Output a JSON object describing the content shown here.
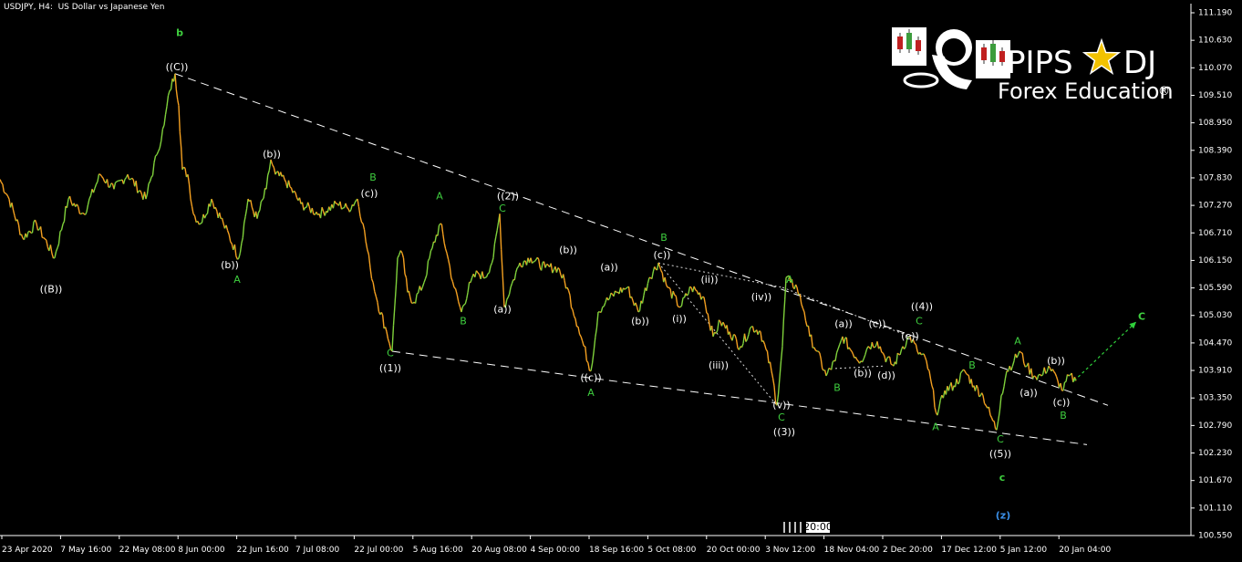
{
  "header": {
    "symbol_info": "USDJPY, H4:  US Dollar vs Japanese Yen"
  },
  "logo": {
    "brand_left": "PIPS",
    "brand_right": "DJ",
    "registered": "®",
    "tagline": "Forex Education"
  },
  "colors": {
    "background": "#000000",
    "candle_up": "#7fd13b",
    "candle_down": "#f4a020",
    "wave_green": "#3fcf3f",
    "wave_white": "#ffffff",
    "wave_blue": "#3a8ee6",
    "trendline": "#ffffff",
    "projection": "#2fd13b"
  },
  "time_marker": "20:00",
  "chart_data": {
    "type": "line",
    "title": "USDJPY, H4:  US Dollar vs Japanese Yen",
    "y_ticks": [
      "111.190",
      "110.630",
      "110.070",
      "109.510",
      "108.950",
      "108.390",
      "107.830",
      "107.270",
      "106.710",
      "106.150",
      "105.590",
      "105.030",
      "104.470",
      "103.910",
      "103.350",
      "102.790",
      "102.230",
      "101.670",
      "101.110",
      "100.550"
    ],
    "x_ticks": [
      "23 Apr 2020",
      "7 May 16:00",
      "22 May 08:00",
      "8 Jun 00:00",
      "22 Jun 16:00",
      "7 Jul 08:00",
      "22 Jul 00:00",
      "5 Aug 16:00",
      "20 Aug 08:00",
      "4 Sep 00:00",
      "18 Sep 16:00",
      "5 Oct 08:00",
      "20 Oct 00:00",
      "3 Nov 12:00",
      "18 Nov 04:00",
      "2 Dec 20:00",
      "17 Dec 12:00",
      "5 Jan 12:00",
      "20 Jan 04:00"
    ],
    "ylim": [
      100.55,
      111.19
    ],
    "grid": false,
    "series": [
      {
        "values": [
          [
            0,
            107.8
          ],
          [
            10,
            107.4
          ],
          [
            25,
            106.6
          ],
          [
            40,
            106.9
          ],
          [
            60,
            106.2
          ],
          [
            75,
            107.4
          ],
          [
            92,
            107.1
          ],
          [
            110,
            107.9
          ],
          [
            125,
            107.6
          ],
          [
            140,
            107.9
          ],
          [
            160,
            107.4
          ],
          [
            172,
            108.3
          ],
          [
            180,
            108.9
          ],
          [
            186,
            109.6
          ],
          [
            192,
            109.95
          ],
          [
            196,
            109.3
          ],
          [
            200,
            108.0
          ],
          [
            206,
            107.9
          ],
          [
            212,
            107.1
          ],
          [
            220,
            106.9
          ],
          [
            232,
            107.4
          ],
          [
            245,
            106.9
          ],
          [
            262,
            106.2
          ],
          [
            272,
            107.4
          ],
          [
            282,
            107.0
          ],
          [
            292,
            107.6
          ],
          [
            297,
            108.2
          ],
          [
            302,
            107.9
          ],
          [
            312,
            107.8
          ],
          [
            330,
            107.3
          ],
          [
            350,
            107.1
          ],
          [
            370,
            107.3
          ],
          [
            382,
            107.2
          ],
          [
            392,
            107.4
          ],
          [
            398,
            106.9
          ],
          [
            406,
            106.0
          ],
          [
            414,
            105.3
          ],
          [
            424,
            104.7
          ],
          [
            430,
            104.3
          ],
          [
            436,
            106.2
          ],
          [
            441,
            106.3
          ],
          [
            447,
            105.5
          ],
          [
            454,
            105.3
          ],
          [
            465,
            105.7
          ],
          [
            474,
            106.4
          ],
          [
            483,
            106.9
          ],
          [
            490,
            106.3
          ],
          [
            498,
            105.6
          ],
          [
            506,
            105.1
          ],
          [
            516,
            105.7
          ],
          [
            524,
            105.9
          ],
          [
            532,
            105.8
          ],
          [
            541,
            106.2
          ],
          [
            548,
            107.1
          ],
          [
            553,
            105.2
          ],
          [
            560,
            105.6
          ],
          [
            570,
            106.1
          ],
          [
            582,
            106.2
          ],
          [
            598,
            106.0
          ],
          [
            612,
            106.0
          ],
          [
            622,
            105.6
          ],
          [
            634,
            104.8
          ],
          [
            648,
            103.9
          ],
          [
            656,
            105.1
          ],
          [
            664,
            105.3
          ],
          [
            676,
            105.5
          ],
          [
            688,
            105.6
          ],
          [
            700,
            105.1
          ],
          [
            712,
            105.8
          ],
          [
            722,
            106.1
          ],
          [
            732,
            105.6
          ],
          [
            746,
            105.2
          ],
          [
            758,
            105.6
          ],
          [
            772,
            105.4
          ],
          [
            782,
            104.6
          ],
          [
            790,
            104.9
          ],
          [
            800,
            104.7
          ],
          [
            812,
            104.4
          ],
          [
            824,
            104.8
          ],
          [
            834,
            104.7
          ],
          [
            846,
            103.9
          ],
          [
            852,
            103.2
          ],
          [
            858,
            104.4
          ],
          [
            862,
            105.8
          ],
          [
            867,
            105.7
          ],
          [
            874,
            105.6
          ],
          [
            882,
            105.1
          ],
          [
            888,
            104.6
          ],
          [
            896,
            104.3
          ],
          [
            906,
            103.8
          ],
          [
            916,
            104.1
          ],
          [
            924,
            104.6
          ],
          [
            934,
            104.3
          ],
          [
            944,
            104.1
          ],
          [
            952,
            104.4
          ],
          [
            962,
            104.5
          ],
          [
            970,
            104.2
          ],
          [
            980,
            104.0
          ],
          [
            990,
            104.4
          ],
          [
            998,
            104.6
          ],
          [
            1006,
            104.3
          ],
          [
            1016,
            104.1
          ],
          [
            1028,
            103.0
          ],
          [
            1036,
            103.5
          ],
          [
            1046,
            103.6
          ],
          [
            1058,
            103.9
          ],
          [
            1068,
            103.6
          ],
          [
            1078,
            103.4
          ],
          [
            1086,
            103.0
          ],
          [
            1093,
            102.7
          ],
          [
            1098,
            103.4
          ],
          [
            1104,
            103.9
          ],
          [
            1112,
            104.1
          ],
          [
            1118,
            104.3
          ],
          [
            1126,
            104.0
          ],
          [
            1134,
            103.8
          ],
          [
            1142,
            103.8
          ],
          [
            1150,
            104.0
          ],
          [
            1160,
            103.7
          ],
          [
            1166,
            103.5
          ],
          [
            1172,
            103.8
          ],
          [
            1180,
            103.7
          ]
        ]
      }
    ],
    "projection": [
      [
        1178,
        103.7
      ],
      [
        1246,
        104.9
      ]
    ],
    "trendlines": [
      {
        "from": [
          192,
          109.95
        ],
        "to": [
          1215,
          103.2
        ]
      },
      {
        "from": [
          430,
          104.3
        ],
        "to": [
          1192,
          102.4
        ]
      }
    ],
    "dotted_lines": [
      {
        "from": [
          722,
          106.1
        ],
        "to": [
          858,
          105.6
        ]
      },
      {
        "from": [
          858,
          105.6
        ],
        "to": [
          998,
          104.6
        ]
      },
      {
        "from": [
          722,
          106.1
        ],
        "to": [
          852,
          103.2
        ]
      },
      {
        "from": [
          916,
          103.95
        ],
        "to": [
          970,
          104.0
        ]
      }
    ],
    "annotations": [
      {
        "text": "b",
        "x": 197,
        "y": 110.77,
        "color": "green",
        "bold": true
      },
      {
        "text": "((C))",
        "x": 194,
        "y": 110.08,
        "color": "white"
      },
      {
        "text": "((B))",
        "x": 56,
        "y": 105.55,
        "color": "white"
      },
      {
        "text": "(b))",
        "x": 298,
        "y": 108.3,
        "color": "white",
        "small": true
      },
      {
        "text": "(b))",
        "x": 252,
        "y": 106.05,
        "color": "white",
        "small": true
      },
      {
        "text": "A",
        "x": 260,
        "y": 105.75,
        "color": "green"
      },
      {
        "text": "B",
        "x": 409,
        "y": 107.83,
        "color": "green"
      },
      {
        "text": "(c))",
        "x": 405,
        "y": 107.5,
        "color": "white",
        "small": true
      },
      {
        "text": "C",
        "x": 428,
        "y": 104.25,
        "color": "green"
      },
      {
        "text": "((1))",
        "x": 428,
        "y": 103.95,
        "color": "white"
      },
      {
        "text": "A",
        "x": 482,
        "y": 107.45,
        "color": "green"
      },
      {
        "text": "B",
        "x": 508,
        "y": 104.9,
        "color": "green"
      },
      {
        "text": "((2))",
        "x": 557,
        "y": 107.45,
        "color": "white"
      },
      {
        "text": "C",
        "x": 551,
        "y": 107.2,
        "color": "green"
      },
      {
        "text": "(b))",
        "x": 623,
        "y": 106.35,
        "color": "white",
        "small": true
      },
      {
        "text": "(a))",
        "x": 551,
        "y": 105.15,
        "color": "white",
        "small": true
      },
      {
        "text": "(a))",
        "x": 668,
        "y": 106.0,
        "color": "white",
        "small": true
      },
      {
        "text": "((c))",
        "x": 648,
        "y": 103.75,
        "color": "white",
        "small": true
      },
      {
        "text": "A",
        "x": 648,
        "y": 103.45,
        "color": "green"
      },
      {
        "text": "(b))",
        "x": 702,
        "y": 104.9,
        "color": "white",
        "small": true
      },
      {
        "text": "B",
        "x": 728,
        "y": 106.6,
        "color": "green"
      },
      {
        "text": "(c))",
        "x": 726,
        "y": 106.25,
        "color": "white",
        "small": true
      },
      {
        "text": "(ii))",
        "x": 778,
        "y": 105.75,
        "color": "white",
        "small": true
      },
      {
        "text": "(i))",
        "x": 745,
        "y": 104.95,
        "color": "white",
        "small": true
      },
      {
        "text": "(iii))",
        "x": 788,
        "y": 104.0,
        "color": "white",
        "small": true
      },
      {
        "text": "(iv))",
        "x": 835,
        "y": 105.4,
        "color": "white",
        "small": true
      },
      {
        "text": "A",
        "x": 866,
        "y": 105.75,
        "color": "green"
      },
      {
        "text": "(v))",
        "x": 857,
        "y": 103.2,
        "color": "white",
        "small": true
      },
      {
        "text": "C",
        "x": 857,
        "y": 102.95,
        "color": "green"
      },
      {
        "text": "((3))",
        "x": 860,
        "y": 102.65,
        "color": "white"
      },
      {
        "text": "(a))",
        "x": 925,
        "y": 104.85,
        "color": "white",
        "small": true
      },
      {
        "text": "(b))",
        "x": 946,
        "y": 103.85,
        "color": "white",
        "small": true
      },
      {
        "text": "B",
        "x": 918,
        "y": 103.55,
        "color": "green"
      },
      {
        "text": "(c))",
        "x": 962,
        "y": 104.85,
        "color": "white",
        "small": true
      },
      {
        "text": "(d))",
        "x": 972,
        "y": 103.8,
        "color": "white",
        "small": true
      },
      {
        "text": "(e))",
        "x": 998,
        "y": 104.6,
        "color": "white",
        "small": true
      },
      {
        "text": "((4))",
        "x": 1011,
        "y": 105.2,
        "color": "white"
      },
      {
        "text": "C",
        "x": 1008,
        "y": 104.9,
        "color": "green"
      },
      {
        "text": "A",
        "x": 1026,
        "y": 102.75,
        "color": "green"
      },
      {
        "text": "B",
        "x": 1066,
        "y": 104.0,
        "color": "green"
      },
      {
        "text": "C",
        "x": 1097,
        "y": 102.5,
        "color": "green"
      },
      {
        "text": "((5))",
        "x": 1097,
        "y": 102.2,
        "color": "white"
      },
      {
        "text": "c",
        "x": 1099,
        "y": 101.72,
        "color": "green",
        "bold": true
      },
      {
        "text": "(z)",
        "x": 1100,
        "y": 100.95,
        "color": "blue",
        "bold": true
      },
      {
        "text": "A",
        "x": 1116,
        "y": 104.5,
        "color": "green"
      },
      {
        "text": "(a))",
        "x": 1128,
        "y": 103.45,
        "color": "white",
        "small": true
      },
      {
        "text": "(b))",
        "x": 1158,
        "y": 104.1,
        "color": "white",
        "small": true
      },
      {
        "text": "(c))",
        "x": 1164,
        "y": 103.25,
        "color": "white",
        "small": true
      },
      {
        "text": "B",
        "x": 1166,
        "y": 102.98,
        "color": "green"
      },
      {
        "text": "C",
        "x": 1252,
        "y": 105.0,
        "color": "green",
        "bold": true
      }
    ]
  }
}
